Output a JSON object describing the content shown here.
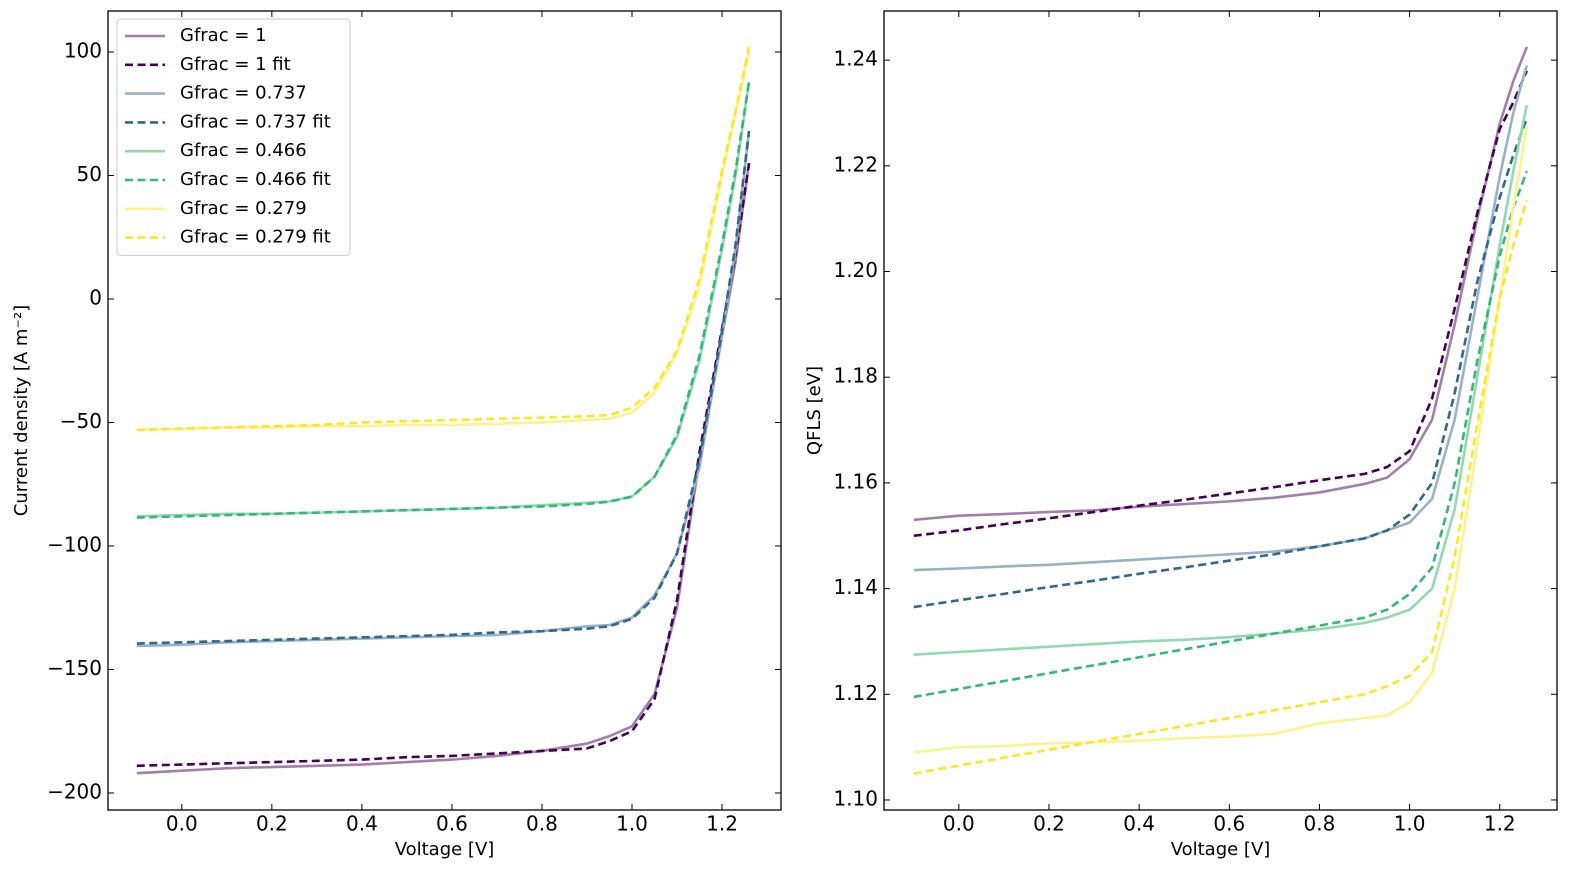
{
  "chart_data": [
    {
      "type": "line",
      "xlabel": "Voltage [V]",
      "ylabel": "Current density [A m⁻²]",
      "xlim": [
        -0.164,
        1.331
      ],
      "ylim": [
        -206.9,
        116.6
      ],
      "xticks": [
        {
          "value": 0,
          "label": "0.0"
        },
        0.2,
        0.4,
        0.6,
        0.8,
        {
          "value": 1,
          "label": "1.0"
        },
        1.2
      ],
      "yticks": [
        {
          "value": -200,
          "label": "−200"
        },
        {
          "value": -150,
          "label": "−150"
        },
        {
          "value": -100,
          "label": "−100"
        },
        {
          "value": -50,
          "label": "−50"
        },
        0,
        50,
        100
      ],
      "legend": "upper left",
      "x": [
        -0.1,
        0,
        0.1,
        0.2,
        0.3,
        0.4,
        0.5,
        0.6,
        0.7,
        0.8,
        0.9,
        0.95,
        1.0,
        1.05,
        1.1,
        1.15,
        1.2,
        1.23,
        1.26
      ],
      "series": [
        {
          "name": "Gfrac = 1",
          "color": "#a07fab",
          "linestyle": "solid",
          "values": [
            -192,
            -191,
            -190,
            -189.5,
            -189,
            -188.5,
            -187.5,
            -186.5,
            -185,
            -183,
            -180,
            -177,
            -173,
            -160,
            -125,
            -65,
            -15,
            15,
            55
          ]
        },
        {
          "name": "Gfrac = 1 fit",
          "color": "#440154",
          "linestyle": "dashed",
          "values": [
            -189,
            -188.5,
            -188,
            -187.5,
            -187,
            -186.5,
            -185.5,
            -185,
            -184,
            -183,
            -182,
            -179,
            -175,
            -162,
            -122,
            -62,
            -12,
            18,
            55
          ]
        },
        {
          "name": "Gfrac = 0.737",
          "color": "#97b1c6",
          "linestyle": "solid",
          "values": [
            -140.5,
            -140,
            -139,
            -138.5,
            -138,
            -137.5,
            -137,
            -136.5,
            -136,
            -134.5,
            -132.5,
            -132,
            -129,
            -120,
            -103,
            -68,
            -15,
            20,
            68
          ]
        },
        {
          "name": "Gfrac = 0.737 fit",
          "color": "#31688e",
          "linestyle": "dashed",
          "values": [
            -139.5,
            -139,
            -138.5,
            -138,
            -137.5,
            -137,
            -136.5,
            -136,
            -135,
            -134.5,
            -133.5,
            -132.5,
            -129.5,
            -121,
            -103,
            -65,
            -13,
            22,
            68
          ]
        },
        {
          "name": "Gfrac = 0.466",
          "color": "#92d9ae",
          "linestyle": "solid",
          "values": [
            -88,
            -87.5,
            -87,
            -87,
            -86.5,
            -86,
            -85.5,
            -85,
            -84.5,
            -83.5,
            -82.5,
            -82,
            -80,
            -72,
            -56,
            -25,
            20,
            50,
            88
          ]
        },
        {
          "name": "Gfrac = 0.466 fit",
          "color": "#35b779",
          "linestyle": "dashed",
          "values": [
            -88.5,
            -88,
            -87.5,
            -87,
            -86.5,
            -86,
            -85.5,
            -85,
            -84.5,
            -84,
            -83,
            -82,
            -80,
            -72,
            -55,
            -23,
            22,
            52,
            88
          ]
        },
        {
          "name": "Gfrac = 0.279",
          "color": "#fdf38e",
          "linestyle": "solid",
          "values": [
            -53,
            -52.5,
            -52,
            -52,
            -51.5,
            -51.5,
            -51,
            -51,
            -50.5,
            -50,
            -49,
            -48.5,
            -46,
            -38,
            -22,
            5,
            50,
            75,
            100
          ]
        },
        {
          "name": "Gfrac = 0.279 fit",
          "color": "#fde725",
          "linestyle": "dashed",
          "values": [
            -53,
            -52.5,
            -52,
            -51.5,
            -51,
            -50,
            -49.5,
            -49,
            -48.5,
            -48,
            -47.5,
            -47,
            -44,
            -36,
            -21,
            8,
            52,
            76,
            102
          ]
        }
      ]
    },
    {
      "type": "line",
      "xlabel": "Voltage [V]",
      "ylabel": "QFLS [eV]",
      "xlim": [
        -0.166,
        1.327
      ],
      "ylim": [
        1.0981,
        1.2493
      ],
      "xticks": [
        {
          "value": 0,
          "label": "0.0"
        },
        0.2,
        0.4,
        0.6,
        0.8,
        {
          "value": 1,
          "label": "1.0"
        },
        1.2
      ],
      "yticks": [
        {
          "value": 1.1,
          "label": "1.10"
        },
        1.12,
        1.14,
        1.16,
        1.18,
        {
          "value": 1.2,
          "label": "1.20"
        },
        1.22,
        1.24
      ],
      "x": [
        -0.1,
        0,
        0.1,
        0.2,
        0.3,
        0.4,
        0.5,
        0.6,
        0.7,
        0.8,
        0.9,
        0.95,
        1.0,
        1.05,
        1.1,
        1.15,
        1.2,
        1.23,
        1.26
      ],
      "series": [
        {
          "color": "#a07fab",
          "linestyle": "solid",
          "values": [
            1.153,
            1.1538,
            1.1541,
            1.1545,
            1.1548,
            1.1555,
            1.156,
            1.1565,
            1.1572,
            1.1582,
            1.1598,
            1.161,
            1.1645,
            1.172,
            1.19,
            1.21,
            1.228,
            1.236,
            1.2425
          ]
        },
        {
          "color": "#440154",
          "linestyle": "dashed",
          "values": [
            1.15,
            1.151,
            1.1522,
            1.1533,
            1.1545,
            1.1557,
            1.1568,
            1.158,
            1.1592,
            1.1605,
            1.1617,
            1.163,
            1.166,
            1.176,
            1.193,
            1.211,
            1.227,
            1.232,
            1.238
          ]
        },
        {
          "color": "#97b1c6",
          "linestyle": "solid",
          "values": [
            1.1435,
            1.1438,
            1.1442,
            1.1445,
            1.145,
            1.1455,
            1.146,
            1.1465,
            1.147,
            1.148,
            1.1495,
            1.151,
            1.1525,
            1.157,
            1.172,
            1.195,
            1.218,
            1.23,
            1.239
          ]
        },
        {
          "color": "#31688e",
          "linestyle": "dashed",
          "values": [
            1.1365,
            1.1378,
            1.139,
            1.1403,
            1.1415,
            1.1428,
            1.144,
            1.1453,
            1.1465,
            1.148,
            1.1495,
            1.151,
            1.154,
            1.16,
            1.177,
            1.198,
            1.214,
            1.222,
            1.229
          ]
        },
        {
          "color": "#92d9ae",
          "linestyle": "solid",
          "values": [
            1.1275,
            1.128,
            1.1285,
            1.129,
            1.1295,
            1.13,
            1.1303,
            1.1308,
            1.1315,
            1.1323,
            1.1335,
            1.1345,
            1.136,
            1.14,
            1.155,
            1.18,
            1.205,
            1.219,
            1.2315
          ]
        },
        {
          "color": "#35b779",
          "linestyle": "dashed",
          "values": [
            1.1195,
            1.121,
            1.1225,
            1.124,
            1.1255,
            1.127,
            1.1285,
            1.13,
            1.1315,
            1.133,
            1.1345,
            1.136,
            1.139,
            1.144,
            1.16,
            1.183,
            1.203,
            1.212,
            1.219
          ]
        },
        {
          "color": "#fdf38e",
          "linestyle": "solid",
          "values": [
            1.109,
            1.11,
            1.1102,
            1.1107,
            1.1109,
            1.1112,
            1.1117,
            1.112,
            1.1125,
            1.1145,
            1.1155,
            1.116,
            1.1185,
            1.124,
            1.14,
            1.167,
            1.195,
            1.212,
            1.2275
          ]
        },
        {
          "color": "#fde725",
          "linestyle": "dashed",
          "values": [
            1.105,
            1.1065,
            1.108,
            1.1095,
            1.111,
            1.1125,
            1.114,
            1.1155,
            1.117,
            1.1185,
            1.12,
            1.1215,
            1.1235,
            1.128,
            1.146,
            1.171,
            1.195,
            1.205,
            1.2135
          ]
        }
      ]
    }
  ]
}
